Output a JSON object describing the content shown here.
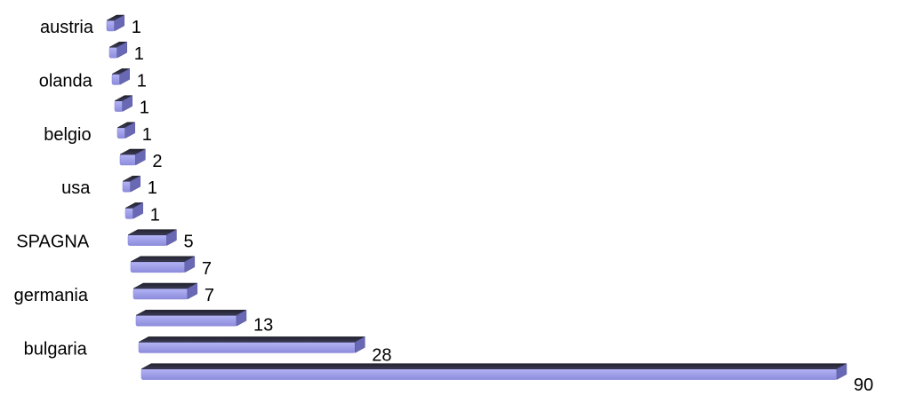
{
  "chart_data": {
    "type": "bar",
    "orientation": "horizontal",
    "style": "3d",
    "categories": [
      "austria",
      "",
      "olanda",
      "",
      "belgio",
      "",
      "usa",
      "",
      "SPAGNA",
      "",
      "germania",
      "",
      "bulgaria",
      ""
    ],
    "values": [
      1,
      1,
      1,
      1,
      1,
      2,
      1,
      1,
      5,
      7,
      7,
      13,
      28,
      90
    ],
    "value_labels": [
      "1",
      "1",
      "1",
      "1",
      "1",
      "2",
      "1",
      "1",
      "5",
      "7",
      "7",
      "13",
      "28",
      "90"
    ],
    "title": "",
    "xlabel": "",
    "ylabel": "",
    "xlim": [
      0,
      90
    ],
    "grid": false,
    "legend": "none"
  },
  "colors": {
    "bar_front": "#a3a3f0",
    "bar_front_shade": "#8c8cdc",
    "bar_top": "#2c2c40",
    "bar_side": "#6868b4",
    "text": "#000000",
    "background": "#ffffff"
  }
}
